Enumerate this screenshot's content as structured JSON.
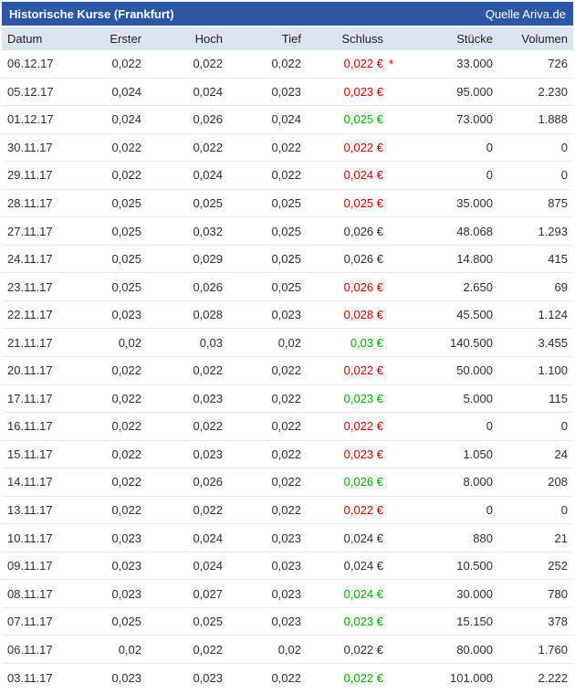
{
  "title_bar": {
    "title": "Historische Kurse (Frankfurt)",
    "source": "Quelle Ariva.de"
  },
  "colors": {
    "titlebar_bg": "#2b57a4",
    "header_bg": "#dde4f1",
    "row_divider": "#e9e9e9",
    "close_up": "#00ab00",
    "close_down": "#cc0000",
    "close_neutral": "#2e2e2e"
  },
  "table": {
    "currency_symbol": "€",
    "footnote_marker": "*",
    "columns": [
      {
        "key": "datum",
        "label": "Datum"
      },
      {
        "key": "erster",
        "label": "Erster"
      },
      {
        "key": "hoch",
        "label": "Hoch"
      },
      {
        "key": "tief",
        "label": "Tief"
      },
      {
        "key": "schluss",
        "label": "Schluss"
      },
      {
        "key": "stuecke",
        "label": "Stücke"
      },
      {
        "key": "volumen",
        "label": "Volumen"
      }
    ],
    "rows": [
      {
        "datum": "06.12.17",
        "erster": "0,022",
        "hoch": "0,022",
        "tief": "0,022",
        "schluss": "0,022",
        "trend": "down",
        "star": true,
        "stuecke": "33.000",
        "volumen": "726"
      },
      {
        "datum": "05.12.17",
        "erster": "0,024",
        "hoch": "0,024",
        "tief": "0,023",
        "schluss": "0,023",
        "trend": "down",
        "star": false,
        "stuecke": "95.000",
        "volumen": "2.230"
      },
      {
        "datum": "01.12.17",
        "erster": "0,024",
        "hoch": "0,026",
        "tief": "0,024",
        "schluss": "0,025",
        "trend": "up",
        "star": false,
        "stuecke": "73.000",
        "volumen": "1.888"
      },
      {
        "datum": "30.11.17",
        "erster": "0,022",
        "hoch": "0,022",
        "tief": "0,022",
        "schluss": "0,022",
        "trend": "down",
        "star": false,
        "stuecke": "0",
        "volumen": "0"
      },
      {
        "datum": "29.11.17",
        "erster": "0,022",
        "hoch": "0,024",
        "tief": "0,022",
        "schluss": "0,024",
        "trend": "down",
        "star": false,
        "stuecke": "0",
        "volumen": "0"
      },
      {
        "datum": "28.11.17",
        "erster": "0,025",
        "hoch": "0,025",
        "tief": "0,025",
        "schluss": "0,025",
        "trend": "down",
        "star": false,
        "stuecke": "35.000",
        "volumen": "875"
      },
      {
        "datum": "27.11.17",
        "erster": "0,025",
        "hoch": "0,032",
        "tief": "0,025",
        "schluss": "0,026",
        "trend": "flat",
        "star": false,
        "stuecke": "48.068",
        "volumen": "1.293"
      },
      {
        "datum": "24.11.17",
        "erster": "0,025",
        "hoch": "0,029",
        "tief": "0,025",
        "schluss": "0,026",
        "trend": "flat",
        "star": false,
        "stuecke": "14.800",
        "volumen": "415"
      },
      {
        "datum": "23.11.17",
        "erster": "0,025",
        "hoch": "0,026",
        "tief": "0,025",
        "schluss": "0,026",
        "trend": "down",
        "star": false,
        "stuecke": "2.650",
        "volumen": "69"
      },
      {
        "datum": "22.11.17",
        "erster": "0,023",
        "hoch": "0,028",
        "tief": "0,023",
        "schluss": "0,028",
        "trend": "down",
        "star": false,
        "stuecke": "45.500",
        "volumen": "1.124"
      },
      {
        "datum": "21.11.17",
        "erster": "0,02",
        "hoch": "0,03",
        "tief": "0,02",
        "schluss": "0,03",
        "trend": "up",
        "star": false,
        "stuecke": "140.500",
        "volumen": "3.455"
      },
      {
        "datum": "20.11.17",
        "erster": "0,022",
        "hoch": "0,022",
        "tief": "0,022",
        "schluss": "0,022",
        "trend": "down",
        "star": false,
        "stuecke": "50.000",
        "volumen": "1.100"
      },
      {
        "datum": "17.11.17",
        "erster": "0,022",
        "hoch": "0,023",
        "tief": "0,022",
        "schluss": "0,023",
        "trend": "up",
        "star": false,
        "stuecke": "5.000",
        "volumen": "115"
      },
      {
        "datum": "16.11.17",
        "erster": "0,022",
        "hoch": "0,022",
        "tief": "0,022",
        "schluss": "0,022",
        "trend": "down",
        "star": false,
        "stuecke": "0",
        "volumen": "0"
      },
      {
        "datum": "15.11.17",
        "erster": "0,022",
        "hoch": "0,023",
        "tief": "0,022",
        "schluss": "0,023",
        "trend": "down",
        "star": false,
        "stuecke": "1.050",
        "volumen": "24"
      },
      {
        "datum": "14.11.17",
        "erster": "0,022",
        "hoch": "0,026",
        "tief": "0,022",
        "schluss": "0,026",
        "trend": "up",
        "star": false,
        "stuecke": "8.000",
        "volumen": "208"
      },
      {
        "datum": "13.11.17",
        "erster": "0,022",
        "hoch": "0,022",
        "tief": "0,022",
        "schluss": "0,022",
        "trend": "down",
        "star": false,
        "stuecke": "0",
        "volumen": "0"
      },
      {
        "datum": "10.11.17",
        "erster": "0,023",
        "hoch": "0,024",
        "tief": "0,023",
        "schluss": "0,024",
        "trend": "flat",
        "star": false,
        "stuecke": "880",
        "volumen": "21"
      },
      {
        "datum": "09.11.17",
        "erster": "0,023",
        "hoch": "0,024",
        "tief": "0,023",
        "schluss": "0,024",
        "trend": "flat",
        "star": false,
        "stuecke": "10.500",
        "volumen": "252"
      },
      {
        "datum": "08.11.17",
        "erster": "0,023",
        "hoch": "0,027",
        "tief": "0,023",
        "schluss": "0,024",
        "trend": "up",
        "star": false,
        "stuecke": "30.000",
        "volumen": "780"
      },
      {
        "datum": "07.11.17",
        "erster": "0,025",
        "hoch": "0,025",
        "tief": "0,023",
        "schluss": "0,023",
        "trend": "up",
        "star": false,
        "stuecke": "15.150",
        "volumen": "378"
      },
      {
        "datum": "06.11.17",
        "erster": "0,02",
        "hoch": "0,022",
        "tief": "0,02",
        "schluss": "0,022",
        "trend": "flat",
        "star": false,
        "stuecke": "80.000",
        "volumen": "1.760"
      },
      {
        "datum": "03.11.17",
        "erster": "0,023",
        "hoch": "0,023",
        "tief": "0,022",
        "schluss": "0,022",
        "trend": "up",
        "star": false,
        "stuecke": "101.000",
        "volumen": "2.222"
      }
    ]
  }
}
